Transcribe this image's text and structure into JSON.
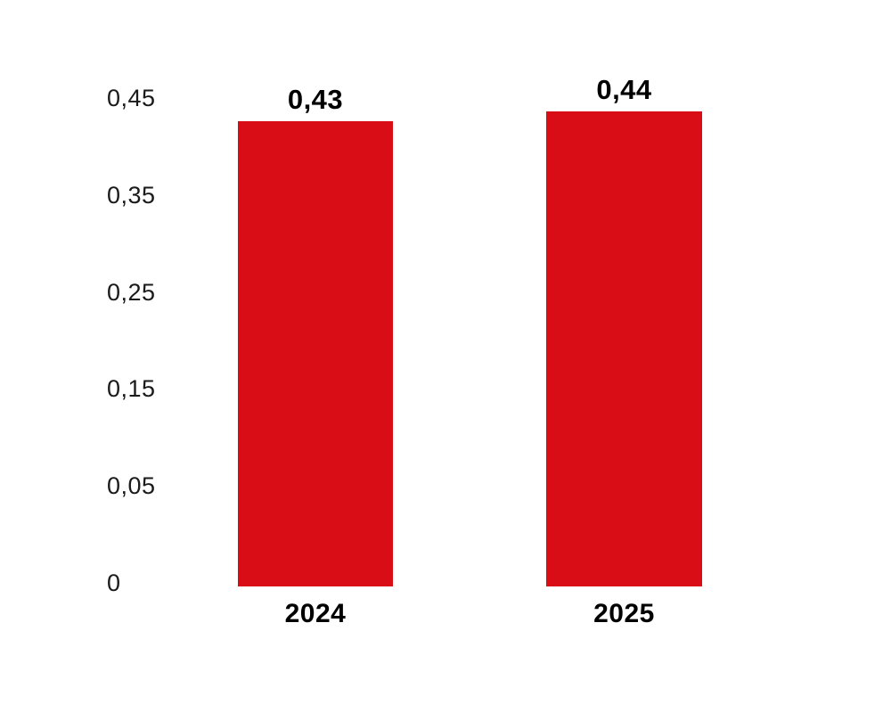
{
  "chart_data": {
    "type": "bar",
    "categories": [
      "2024",
      "2025"
    ],
    "values": [
      0.43,
      0.44
    ],
    "value_labels": [
      "0,43",
      "0,44"
    ],
    "decimal_separator": ",",
    "y_axis": {
      "tick_labels_top_to_bottom": [
        "0,45",
        "0,35",
        "0,25",
        "0,15",
        "0,05",
        "0"
      ],
      "tick_values_top_to_bottom": [
        0.45,
        0.35,
        0.25,
        0.15,
        0.05,
        0
      ],
      "range_min": 0,
      "range_max": 0.45,
      "gridlines": false,
      "axis_line": false
    },
    "legend": "none",
    "title": "",
    "colors": {
      "bar": "#D90D15",
      "value_label_text": "#000000",
      "category_label_text": "#000000",
      "tick_text": "#1a1a1a",
      "background": "#FFFFFF"
    }
  }
}
